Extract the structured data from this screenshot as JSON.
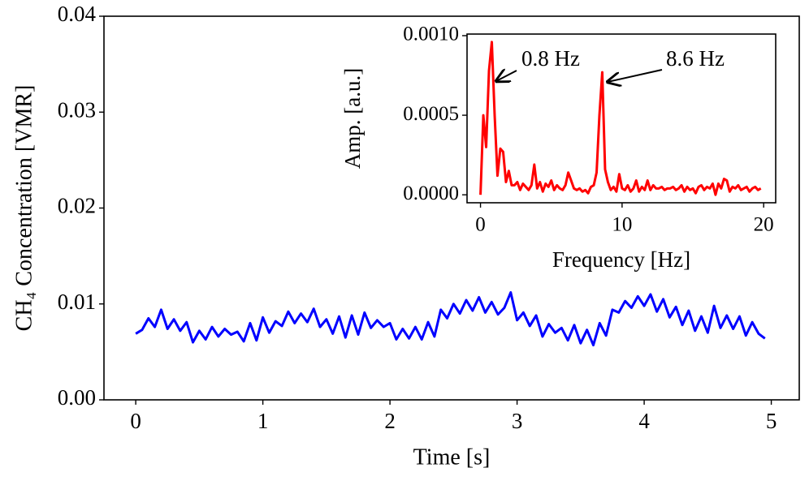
{
  "chart_data": [
    {
      "type": "line",
      "xlabel": "Time [s]",
      "ylabel": "CH₄ Concentration [VMR]",
      "xlim": [
        -0.25,
        5.22
      ],
      "ylim": [
        0,
        0.04
      ],
      "xticks": [
        0,
        1,
        2,
        3,
        4,
        5
      ],
      "yticks": [
        {
          "value": 0,
          "label": "0.00"
        },
        0.01,
        0.02,
        0.03,
        0.04
      ],
      "x": [
        0,
        0.05,
        0.1,
        0.15,
        0.2,
        0.25,
        0.3,
        0.35,
        0.4,
        0.45,
        0.5,
        0.55,
        0.6,
        0.65,
        0.7,
        0.75,
        0.8,
        0.85,
        0.9,
        0.95,
        1,
        1.05,
        1.1,
        1.15,
        1.2,
        1.25,
        1.3,
        1.35,
        1.4,
        1.45,
        1.5,
        1.55,
        1.6,
        1.65,
        1.7,
        1.75,
        1.8,
        1.85,
        1.9,
        1.95,
        2,
        2.05,
        2.1,
        2.15,
        2.2,
        2.25,
        2.3,
        2.35,
        2.4,
        2.45,
        2.5,
        2.55,
        2.6,
        2.65,
        2.7,
        2.75,
        2.8,
        2.85,
        2.9,
        2.95,
        3,
        3.05,
        3.1,
        3.15,
        3.2,
        3.25,
        3.3,
        3.35,
        3.4,
        3.45,
        3.5,
        3.55,
        3.6,
        3.65,
        3.7,
        3.75,
        3.8,
        3.85,
        3.9,
        3.95,
        4,
        4.05,
        4.1,
        4.15,
        4.2,
        4.25,
        4.3,
        4.35,
        4.4,
        4.45,
        4.5,
        4.55,
        4.6,
        4.65,
        4.7,
        4.75,
        4.8,
        4.85,
        4.9,
        4.95
      ],
      "series": [
        {
          "color": "#0000ff",
          "values": [
            0.0069,
            0.0073,
            0.0085,
            0.0076,
            0.0094,
            0.0074,
            0.0084,
            0.0072,
            0.0081,
            0.006,
            0.0072,
            0.0063,
            0.0076,
            0.0066,
            0.0074,
            0.0068,
            0.0071,
            0.0061,
            0.008,
            0.0062,
            0.0086,
            0.007,
            0.0082,
            0.0077,
            0.0092,
            0.008,
            0.009,
            0.0081,
            0.0095,
            0.0076,
            0.0084,
            0.0069,
            0.0087,
            0.0065,
            0.0088,
            0.0068,
            0.0091,
            0.0075,
            0.0083,
            0.0076,
            0.008,
            0.0063,
            0.0074,
            0.0064,
            0.0076,
            0.0063,
            0.0081,
            0.0066,
            0.0094,
            0.0085,
            0.01,
            0.009,
            0.0104,
            0.0093,
            0.0107,
            0.0091,
            0.0102,
            0.0089,
            0.0096,
            0.0112,
            0.0083,
            0.0091,
            0.0077,
            0.0088,
            0.0066,
            0.0079,
            0.007,
            0.0075,
            0.0062,
            0.0078,
            0.0059,
            0.0073,
            0.0057,
            0.008,
            0.0067,
            0.0094,
            0.0091,
            0.0103,
            0.0096,
            0.0108,
            0.0098,
            0.011,
            0.0092,
            0.0105,
            0.0086,
            0.0097,
            0.0078,
            0.0093,
            0.0072,
            0.0087,
            0.007,
            0.0098,
            0.0075,
            0.0088,
            0.0074,
            0.0087,
            0.0067,
            0.0081,
            0.0069,
            0.0064
          ]
        }
      ]
    },
    {
      "type": "line",
      "xlabel": "Frequency [Hz]",
      "ylabel": "Amp. [a.u.]",
      "xlim": [
        -0.95,
        20.85
      ],
      "ylim": [
        -5e-05,
        0.00101
      ],
      "xticks": [
        0,
        10,
        20
      ],
      "yticks": [
        {
          "value": 0,
          "label": "0.0000"
        },
        {
          "value": 0.0005,
          "label": "0.0005"
        },
        {
          "value": 0.001,
          "label": "0.0010"
        }
      ],
      "annotations": [
        "0.8 Hz",
        "8.6 Hz"
      ],
      "x": [
        0,
        0.2,
        0.4,
        0.6,
        0.8,
        1,
        1.2,
        1.4,
        1.6,
        1.8,
        2,
        2.2,
        2.4,
        2.6,
        2.8,
        3,
        3.2,
        3.4,
        3.6,
        3.8,
        4,
        4.2,
        4.4,
        4.6,
        4.8,
        5,
        5.2,
        5.4,
        5.6,
        5.8,
        6,
        6.2,
        6.4,
        6.6,
        6.8,
        7,
        7.2,
        7.4,
        7.6,
        7.8,
        8,
        8.2,
        8.4,
        8.6,
        8.8,
        9,
        9.2,
        9.4,
        9.6,
        9.8,
        10,
        10.2,
        10.4,
        10.6,
        10.8,
        11,
        11.2,
        11.4,
        11.6,
        11.8,
        12,
        12.2,
        12.4,
        12.6,
        12.8,
        13,
        13.2,
        13.4,
        13.6,
        13.8,
        14,
        14.2,
        14.4,
        14.6,
        14.8,
        15,
        15.2,
        15.4,
        15.6,
        15.8,
        16,
        16.2,
        16.4,
        16.6,
        16.8,
        17,
        17.2,
        17.4,
        17.6,
        17.8,
        18,
        18.2,
        18.4,
        18.6,
        18.8,
        19,
        19.2,
        19.4,
        19.6,
        19.8
      ],
      "series": [
        {
          "color": "#ff0000",
          "values": [
            0,
            0.0005,
            0.0003,
            0.00078,
            0.00096,
            0.0005,
            0.00012,
            0.00029,
            0.00027,
            8e-05,
            0.00015,
            6e-05,
            6e-05,
            8e-05,
            3e-05,
            7e-05,
            5e-05,
            3e-05,
            6e-05,
            0.00019,
            4e-05,
            8e-05,
            2e-05,
            7e-05,
            5e-05,
            9e-05,
            3e-05,
            6e-05,
            4e-05,
            3e-05,
            6e-05,
            0.00014,
            9e-05,
            4e-05,
            3e-05,
            4e-05,
            2e-05,
            3e-05,
            1e-05,
            5e-05,
            6e-05,
            0.00014,
            0.0005,
            0.00077,
            0.00016,
            8e-05,
            3e-05,
            5e-05,
            2e-05,
            0.00013,
            4e-05,
            3e-05,
            6e-05,
            2e-05,
            4e-05,
            9e-05,
            2e-05,
            5e-05,
            3e-05,
            9e-05,
            3e-05,
            6e-05,
            4e-05,
            4e-05,
            5e-05,
            3e-05,
            4e-05,
            4e-05,
            5e-05,
            3e-05,
            4e-05,
            6e-05,
            2e-05,
            5e-05,
            3e-05,
            4e-05,
            1e-05,
            5e-05,
            6e-05,
            3e-05,
            5e-05,
            4e-05,
            7e-05,
            0,
            7e-05,
            4e-05,
            0.0001,
            9e-05,
            2e-05,
            5e-05,
            4e-05,
            6e-05,
            3e-05,
            4e-05,
            5e-05,
            2e-05,
            4e-05,
            5e-05,
            3e-05,
            4e-05
          ]
        }
      ]
    }
  ]
}
